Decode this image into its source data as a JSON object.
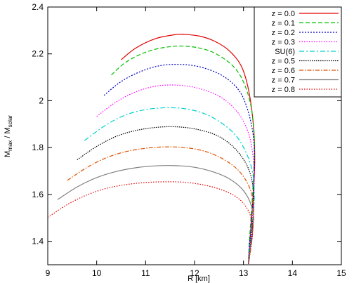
{
  "chart_data": {
    "type": "line",
    "xlabel": "R  [km]",
    "ylabel": "M_max / M_solar",
    "xlim": [
      9,
      15
    ],
    "ylim": [
      1.3,
      2.4
    ],
    "xticks": [
      9,
      10,
      11,
      12,
      13,
      14,
      15
    ],
    "yticks": [
      1.4,
      1.6,
      1.8,
      2.0,
      2.2,
      2.4
    ],
    "ytick_labels": [
      "1.4",
      "1.6",
      "1.8",
      "2",
      "2.2",
      "2.4"
    ],
    "legend_position": "top-right",
    "grid": false,
    "series": [
      {
        "name": "z = 0.0",
        "color": "#e00000",
        "dash": "solid",
        "points": [
          [
            10.5,
            2.175
          ],
          [
            10.8,
            2.225
          ],
          [
            11.2,
            2.265
          ],
          [
            11.6,
            2.282
          ],
          [
            11.8,
            2.283
          ],
          [
            12.1,
            2.276
          ],
          [
            12.4,
            2.255
          ],
          [
            12.7,
            2.215
          ],
          [
            12.95,
            2.15
          ],
          [
            13.1,
            2.05
          ],
          [
            13.2,
            1.9
          ],
          [
            13.23,
            1.75
          ],
          [
            13.2,
            1.6
          ],
          [
            13.15,
            1.45
          ],
          [
            13.1,
            1.3
          ]
        ]
      },
      {
        "name": "z = 0.1",
        "color": "#00c000",
        "dash": "6,3",
        "points": [
          [
            10.3,
            2.11
          ],
          [
            10.6,
            2.165
          ],
          [
            11.0,
            2.207
          ],
          [
            11.4,
            2.228
          ],
          [
            11.8,
            2.233
          ],
          [
            12.2,
            2.22
          ],
          [
            12.5,
            2.193
          ],
          [
            12.8,
            2.145
          ],
          [
            13.0,
            2.08
          ],
          [
            13.15,
            1.98
          ],
          [
            13.22,
            1.85
          ],
          [
            13.21,
            1.7
          ],
          [
            13.17,
            1.55
          ],
          [
            13.12,
            1.4
          ],
          [
            13.1,
            1.3
          ]
        ]
      },
      {
        "name": "z = 0.2",
        "color": "#0000c0",
        "dash": "2,2",
        "points": [
          [
            10.15,
            2.023
          ],
          [
            10.5,
            2.082
          ],
          [
            10.9,
            2.125
          ],
          [
            11.3,
            2.15
          ],
          [
            11.7,
            2.155
          ],
          [
            12.1,
            2.145
          ],
          [
            12.5,
            2.115
          ],
          [
            12.8,
            2.07
          ],
          [
            13.0,
            2.01
          ],
          [
            13.15,
            1.91
          ],
          [
            13.22,
            1.8
          ],
          [
            13.21,
            1.65
          ],
          [
            13.17,
            1.5
          ],
          [
            13.12,
            1.38
          ],
          [
            13.1,
            1.3
          ]
        ]
      },
      {
        "name": "z = 0.3",
        "color": "#ff00ff",
        "dash": "1.5,2",
        "points": [
          [
            10.0,
            1.933
          ],
          [
            10.4,
            1.995
          ],
          [
            10.8,
            2.038
          ],
          [
            11.2,
            2.062
          ],
          [
            11.6,
            2.067
          ],
          [
            12.0,
            2.057
          ],
          [
            12.4,
            2.03
          ],
          [
            12.7,
            1.99
          ],
          [
            12.95,
            1.93
          ],
          [
            13.12,
            1.85
          ],
          [
            13.2,
            1.75
          ],
          [
            13.22,
            1.65
          ],
          [
            13.18,
            1.5
          ],
          [
            13.13,
            1.38
          ],
          [
            13.1,
            1.3
          ]
        ]
      },
      {
        "name": "SU(6)",
        "color": "#00d0d0",
        "dash": "7,3,2,3",
        "points": [
          [
            9.75,
            1.83
          ],
          [
            10.2,
            1.898
          ],
          [
            10.6,
            1.94
          ],
          [
            11.0,
            1.962
          ],
          [
            11.4,
            1.97
          ],
          [
            11.8,
            1.966
          ],
          [
            12.2,
            1.945
          ],
          [
            12.55,
            1.905
          ],
          [
            12.85,
            1.85
          ],
          [
            13.05,
            1.78
          ],
          [
            13.18,
            1.7
          ],
          [
            13.22,
            1.6
          ],
          [
            13.19,
            1.48
          ],
          [
            13.13,
            1.37
          ],
          [
            13.1,
            1.3
          ]
        ]
      },
      {
        "name": "z = 0.5",
        "color": "#000000",
        "dash": "1.5,1.5",
        "points": [
          [
            9.6,
            1.748
          ],
          [
            10.0,
            1.805
          ],
          [
            10.4,
            1.848
          ],
          [
            10.8,
            1.873
          ],
          [
            11.2,
            1.886
          ],
          [
            11.6,
            1.889
          ],
          [
            12.0,
            1.88
          ],
          [
            12.4,
            1.857
          ],
          [
            12.7,
            1.82
          ],
          [
            12.95,
            1.765
          ],
          [
            13.12,
            1.7
          ],
          [
            13.2,
            1.62
          ],
          [
            13.2,
            1.52
          ],
          [
            13.16,
            1.42
          ],
          [
            13.12,
            1.34
          ],
          [
            13.1,
            1.3
          ]
        ]
      },
      {
        "name": "z = 0.6",
        "color": "#e05000",
        "dash": "6,2,1.5,2",
        "points": [
          [
            9.4,
            1.66
          ],
          [
            9.8,
            1.715
          ],
          [
            10.2,
            1.757
          ],
          [
            10.6,
            1.783
          ],
          [
            11.0,
            1.797
          ],
          [
            11.4,
            1.803
          ],
          [
            11.8,
            1.8
          ],
          [
            12.2,
            1.785
          ],
          [
            12.55,
            1.755
          ],
          [
            12.85,
            1.712
          ],
          [
            13.05,
            1.66
          ],
          [
            13.17,
            1.6
          ],
          [
            13.21,
            1.52
          ],
          [
            13.18,
            1.42
          ],
          [
            13.13,
            1.34
          ],
          [
            13.1,
            1.3
          ]
        ]
      },
      {
        "name": "z = 0.7",
        "color": "#808080",
        "dash": "solid",
        "points": [
          [
            9.2,
            1.578
          ],
          [
            9.6,
            1.632
          ],
          [
            10.0,
            1.672
          ],
          [
            10.4,
            1.698
          ],
          [
            10.8,
            1.714
          ],
          [
            11.2,
            1.722
          ],
          [
            11.6,
            1.723
          ],
          [
            12.0,
            1.716
          ],
          [
            12.4,
            1.695
          ],
          [
            12.7,
            1.668
          ],
          [
            12.95,
            1.628
          ],
          [
            13.12,
            1.575
          ],
          [
            13.2,
            1.51
          ],
          [
            13.18,
            1.43
          ],
          [
            13.13,
            1.35
          ],
          [
            13.1,
            1.3
          ]
        ]
      },
      {
        "name": "z = 0.8",
        "color": "#e00000",
        "dash": "1.5,2",
        "points": [
          [
            9.0,
            1.502
          ],
          [
            9.4,
            1.557
          ],
          [
            9.8,
            1.598
          ],
          [
            10.2,
            1.626
          ],
          [
            10.6,
            1.642
          ],
          [
            11.0,
            1.651
          ],
          [
            11.4,
            1.654
          ],
          [
            11.8,
            1.652
          ],
          [
            12.2,
            1.64
          ],
          [
            12.55,
            1.62
          ],
          [
            12.85,
            1.59
          ],
          [
            13.05,
            1.548
          ],
          [
            13.17,
            1.49
          ],
          [
            13.18,
            1.42
          ],
          [
            13.13,
            1.35
          ],
          [
            13.1,
            1.3
          ]
        ]
      }
    ]
  }
}
